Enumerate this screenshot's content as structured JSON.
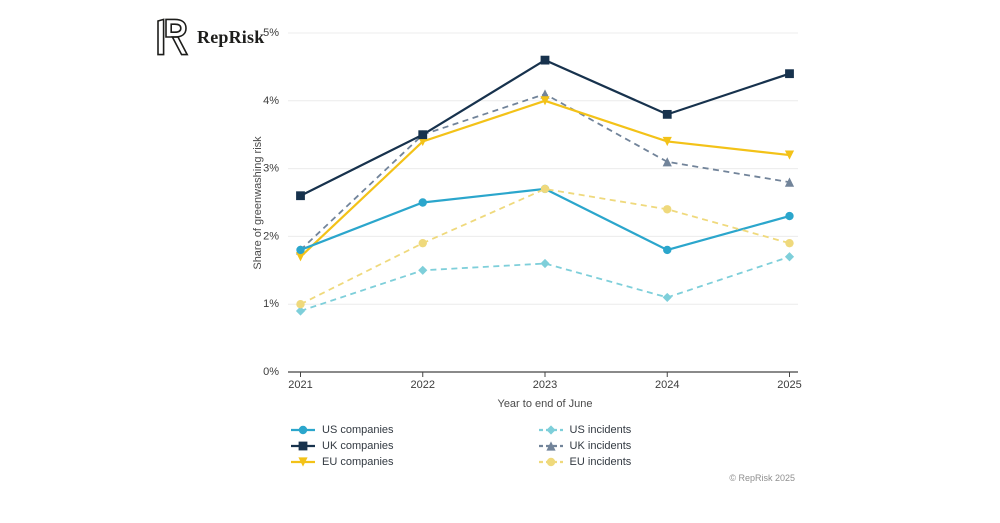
{
  "brand": {
    "logo_text": "RepRisk",
    "logo_icon": "reprisk-monogram-icon"
  },
  "footer": {
    "copyright": "© RepRisk 2025"
  },
  "chart_data": {
    "type": "line",
    "title": "",
    "xlabel": "Year to end of June",
    "ylabel": "Share of greenwashing risk",
    "x": [
      2021,
      2022,
      2023,
      2024,
      2025
    ],
    "x_tick_labels": [
      "2021",
      "2022",
      "2023",
      "2024",
      "2025"
    ],
    "y_ticks": [
      0,
      1,
      2,
      3,
      4,
      5
    ],
    "y_tick_labels": [
      "0%",
      "1%",
      "2%",
      "3%",
      "4%",
      "5%"
    ],
    "ylim": [
      0,
      5
    ],
    "grid": "horizontal",
    "legend_position": "bottom",
    "series": [
      {
        "name": "US companies",
        "values": [
          1.8,
          2.5,
          2.7,
          1.8,
          2.3
        ],
        "color": "#2BA6CC",
        "style": "solid",
        "marker": "circle"
      },
      {
        "name": "UK companies",
        "values": [
          2.6,
          3.5,
          4.6,
          3.8,
          4.4
        ],
        "color": "#17324D",
        "style": "solid",
        "marker": "square"
      },
      {
        "name": "EU companies",
        "values": [
          1.7,
          3.4,
          4.0,
          3.4,
          3.2
        ],
        "color": "#F3C218",
        "style": "solid",
        "marker": "triangle-down"
      },
      {
        "name": "US incidents",
        "values": [
          0.9,
          1.5,
          1.6,
          1.1,
          1.7
        ],
        "color": "#7ECFDA",
        "style": "dashed",
        "marker": "diamond"
      },
      {
        "name": "UK incidents",
        "values": [
          1.8,
          3.5,
          4.1,
          3.1,
          2.8
        ],
        "color": "#72849A",
        "style": "dashed",
        "marker": "triangle-up"
      },
      {
        "name": "EU incidents",
        "values": [
          1.0,
          1.9,
          2.7,
          2.4,
          1.9
        ],
        "color": "#EFD97C",
        "style": "dashed",
        "marker": "circle"
      }
    ]
  }
}
